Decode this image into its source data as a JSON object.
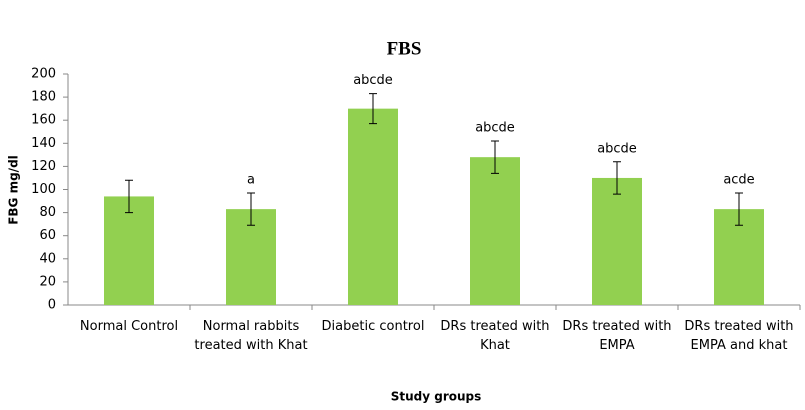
{
  "chart_data": {
    "type": "bar",
    "title": "FBS",
    "x_label": "Study groups",
    "y_label": "FBG mg/dl",
    "categories": [
      "Normal Control",
      "Normal rabbits treated with Khat",
      "Diabetic control",
      "DRs treated with Khat",
      "DRs  treated with EMPA",
      "DRs treated with EMPA and khat"
    ],
    "values": [
      94,
      83,
      170,
      128,
      110,
      83
    ],
    "errors": [
      14,
      14,
      13,
      14,
      14,
      14
    ],
    "annotations": [
      null,
      "a",
      "abcde",
      "abcde",
      "abcde",
      "acde"
    ],
    "color": "#92d050",
    "ylim": [
      0,
      200
    ],
    "yticks": [
      0,
      20,
      40,
      60,
      80,
      100,
      120,
      140,
      160,
      180,
      200
    ],
    "grid": false
  }
}
